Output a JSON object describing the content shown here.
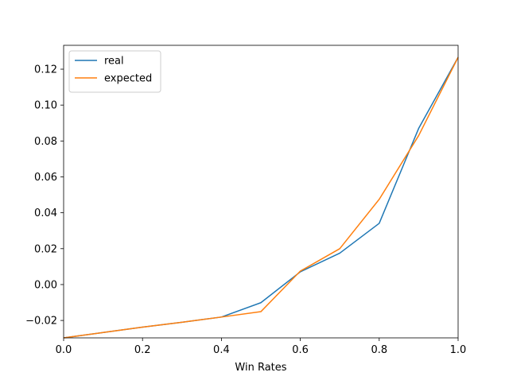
{
  "chart_data": {
    "type": "line",
    "title": "",
    "xlabel": "Win Rates",
    "ylabel": "",
    "xlim": [
      0.0,
      1.0
    ],
    "ylim": [
      -0.0297,
      0.1333
    ],
    "grid": false,
    "legend_position": "top-left",
    "x_ticks": [
      0.0,
      0.2,
      0.4,
      0.6,
      0.8,
      1.0
    ],
    "x_tick_labels": [
      "0.0",
      "0.2",
      "0.4",
      "0.6",
      "0.8",
      "1.0"
    ],
    "y_ticks": [
      -0.02,
      0.0,
      0.02,
      0.04,
      0.06,
      0.08,
      0.1,
      0.12
    ],
    "y_tick_labels": [
      "−0.02",
      "0.00",
      "0.02",
      "0.04",
      "0.06",
      "0.08",
      "0.10",
      "0.12"
    ],
    "series": [
      {
        "name": "real",
        "color": "#1f77b4",
        "x": [
          0.0,
          0.1,
          0.2,
          0.3,
          0.4,
          0.5,
          0.6,
          0.7,
          0.8,
          0.9,
          1.0
        ],
        "y": [
          -0.0297,
          -0.0267,
          -0.0237,
          -0.021,
          -0.0181,
          -0.0101,
          0.0071,
          0.0175,
          0.0341,
          0.087,
          0.1266
        ]
      },
      {
        "name": "expected",
        "color": "#ff7f0e",
        "x": [
          0.0,
          0.1,
          0.2,
          0.3,
          0.4,
          0.5,
          0.6,
          0.7,
          0.8,
          0.9,
          1.0
        ],
        "y": [
          -0.0297,
          -0.0267,
          -0.0237,
          -0.021,
          -0.0181,
          -0.0151,
          0.0075,
          0.02,
          0.0475,
          0.083,
          0.1266
        ]
      }
    ]
  }
}
